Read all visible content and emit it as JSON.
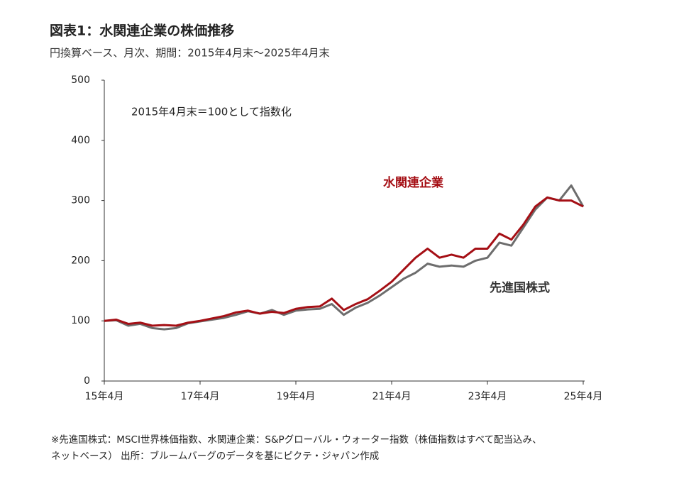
{
  "chart_data": {
    "type": "line",
    "title": "図表1：水関連企業の株価推移",
    "subtitle": "円換算ベース、月次、期間：2015年4月末～2025年4月末",
    "annotation": "2015年4月末＝100として指数化",
    "notes": [
      "※先進国株式：MSCI世界株価指数、水関連企業：S&Pグローバル・ウォーター指数（株価指数はすべて配当込み、",
      "ネットベース） 出所：ブルームバーグのデータを基にピクテ・ジャパン作成"
    ],
    "categories": [
      "15年4月",
      null,
      null,
      null,
      null,
      null,
      null,
      null,
      "17年4月",
      null,
      null,
      null,
      null,
      null,
      null,
      null,
      "19年4月",
      null,
      null,
      null,
      null,
      null,
      null,
      null,
      "21年4月",
      null,
      null,
      null,
      null,
      null,
      null,
      null,
      "23年4月",
      null,
      null,
      null,
      null,
      null,
      null,
      null,
      "25年4月"
    ],
    "series": [
      {
        "name": "水関連企業",
        "color": "#a50f15",
        "values": [
          100,
          102,
          95,
          97,
          92,
          93,
          92,
          97,
          100,
          104,
          108,
          114,
          117,
          112,
          115,
          113,
          120,
          123,
          124,
          137,
          118,
          128,
          136,
          150,
          165,
          185,
          205,
          220,
          205,
          210,
          205,
          220,
          220,
          245,
          235,
          260,
          290,
          305,
          300,
          300,
          290
        ]
      },
      {
        "name": "先進国株式",
        "color": "#6d6d6d",
        "values": [
          100,
          101,
          92,
          95,
          88,
          86,
          88,
          96,
          99,
          102,
          105,
          110,
          116,
          112,
          118,
          110,
          117,
          119,
          120,
          128,
          110,
          122,
          130,
          142,
          156,
          170,
          180,
          195,
          190,
          192,
          190,
          200,
          205,
          230,
          225,
          255,
          285,
          305,
          300,
          325,
          290
        ]
      }
    ],
    "ylim": [
      0,
      500
    ],
    "yticks": [
      0,
      100,
      200,
      300,
      400,
      500
    ]
  }
}
